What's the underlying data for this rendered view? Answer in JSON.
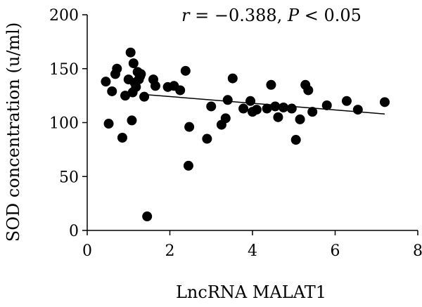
{
  "chart_data": {
    "type": "scatter",
    "xlabel": "LncRNA MALAT1",
    "ylabel": "SOD concentration (u/ml)",
    "xlim": [
      0,
      8
    ],
    "ylim": [
      0,
      200
    ],
    "x_ticks": [
      "0",
      "2",
      "4",
      "6",
      "8"
    ],
    "y_ticks": [
      "0",
      "50",
      "100",
      "150",
      "200"
    ],
    "grid": false,
    "annotation": {
      "r_label": "r",
      "r_value": " = −0.388, ",
      "p_label": "P",
      "p_value": " < 0.05"
    },
    "regression_line": {
      "x": [
        1.4,
        7.2
      ],
      "y": [
        126,
        108
      ]
    },
    "points": [
      [
        0.45,
        138
      ],
      [
        0.52,
        99
      ],
      [
        0.6,
        129
      ],
      [
        0.68,
        145
      ],
      [
        0.72,
        150
      ],
      [
        0.85,
        86
      ],
      [
        0.92,
        125
      ],
      [
        1.0,
        140
      ],
      [
        1.05,
        165
      ],
      [
        1.08,
        102
      ],
      [
        1.1,
        128
      ],
      [
        1.12,
        155
      ],
      [
        1.15,
        137
      ],
      [
        1.18,
        133
      ],
      [
        1.22,
        147
      ],
      [
        1.25,
        140
      ],
      [
        1.28,
        143
      ],
      [
        1.3,
        145
      ],
      [
        1.38,
        124
      ],
      [
        1.45,
        13
      ],
      [
        1.6,
        140
      ],
      [
        1.65,
        134
      ],
      [
        1.95,
        133
      ],
      [
        2.1,
        134
      ],
      [
        2.25,
        130
      ],
      [
        2.38,
        148
      ],
      [
        2.45,
        60
      ],
      [
        2.47,
        96
      ],
      [
        2.9,
        85
      ],
      [
        3.0,
        115
      ],
      [
        3.25,
        98
      ],
      [
        3.35,
        104
      ],
      [
        3.4,
        121
      ],
      [
        3.52,
        141
      ],
      [
        3.78,
        113
      ],
      [
        3.95,
        120
      ],
      [
        4.0,
        110
      ],
      [
        4.1,
        112
      ],
      [
        4.35,
        113
      ],
      [
        4.45,
        135
      ],
      [
        4.55,
        115
      ],
      [
        4.62,
        105
      ],
      [
        4.75,
        114
      ],
      [
        4.95,
        113
      ],
      [
        5.05,
        84
      ],
      [
        5.15,
        103
      ],
      [
        5.28,
        135
      ],
      [
        5.35,
        130
      ],
      [
        5.45,
        110
      ],
      [
        5.8,
        116
      ],
      [
        6.28,
        120
      ],
      [
        6.55,
        112
      ],
      [
        7.2,
        119
      ]
    ]
  }
}
